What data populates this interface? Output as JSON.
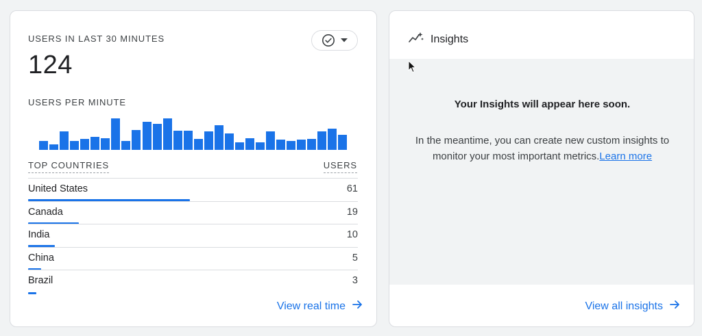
{
  "realtime": {
    "title": "USERS IN LAST 30 MINUTES",
    "total_users": "124",
    "per_minute_label": "USERS PER MINUTE",
    "per_minute_values": [
      11,
      7,
      22,
      11,
      13,
      16,
      14,
      38,
      11,
      24,
      34,
      31,
      38,
      23,
      23,
      13,
      22,
      30,
      20,
      9,
      14,
      9,
      22,
      12,
      11,
      12,
      13,
      22,
      26,
      18
    ],
    "table": {
      "col_country": "TOP COUNTRIES",
      "col_users": "USERS",
      "rows": [
        {
          "country": "United States",
          "users": "61",
          "share": 0.49
        },
        {
          "country": "Canada",
          "users": "19",
          "share": 0.153
        },
        {
          "country": "India",
          "users": "10",
          "share": 0.081
        },
        {
          "country": "China",
          "users": "5",
          "share": 0.04
        },
        {
          "country": "Brazil",
          "users": "3",
          "share": 0.024
        }
      ]
    },
    "view_link": "View real time"
  },
  "insights": {
    "title": "Insights",
    "headline": "Your Insights will appear here soon.",
    "body": "In the meantime, you can create new custom insights to monitor your most important metrics.",
    "learn_more": "Learn more",
    "view_link": "View all insights"
  },
  "colors": {
    "accent": "#1a73e8",
    "text": "#202124",
    "muted_bg": "#f1f3f4",
    "border": "#dadce0"
  },
  "icons": [
    "check-circle-icon",
    "caret-down-icon",
    "arrow-right-icon",
    "sparkline-icon",
    "mouse-cursor-icon"
  ]
}
